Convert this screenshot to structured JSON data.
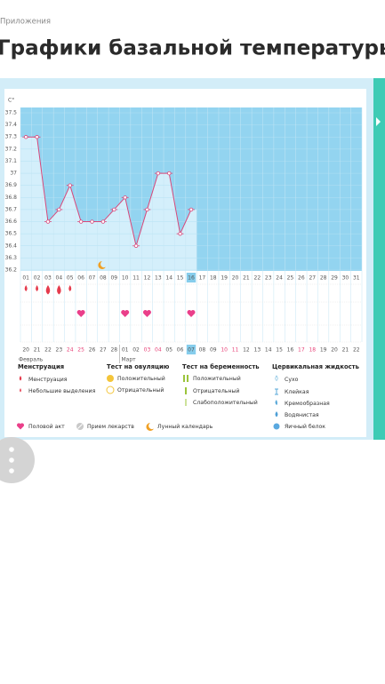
{
  "header": {
    "breadcrumb": "Приложения",
    "title": "Графики базальной температуры"
  },
  "chart_data": {
    "type": "line",
    "y_unit": "C°",
    "categories": [
      "01",
      "02",
      "03",
      "04",
      "05",
      "06",
      "07",
      "08",
      "09",
      "10",
      "11",
      "12",
      "13",
      "14",
      "15",
      "16",
      "17",
      "18",
      "19",
      "20",
      "21",
      "22",
      "23",
      "24",
      "25",
      "26",
      "27",
      "28",
      "29",
      "30",
      "31"
    ],
    "values": [
      37.3,
      37.3,
      36.6,
      36.7,
      36.9,
      36.6,
      36.6,
      36.6,
      36.7,
      36.8,
      36.4,
      36.7,
      37.0,
      37.0,
      36.5,
      36.7,
      null,
      null,
      null,
      null,
      null,
      null,
      null,
      null,
      null,
      null,
      null,
      null,
      null,
      null,
      null
    ],
    "color": "#d9487a",
    "ylim": [
      36.2,
      37.5
    ],
    "yticks": [
      36.2,
      36.3,
      36.4,
      36.5,
      36.6,
      36.7,
      36.8,
      36.9,
      37.0,
      37.1,
      37.2,
      37.3,
      37.4,
      37.5
    ],
    "grid": true,
    "menstruation": [
      "light",
      "light",
      "heavy",
      "heavy",
      "light",
      null,
      null,
      null,
      null,
      null,
      null,
      null,
      null,
      null,
      null,
      null,
      null,
      null,
      null,
      null,
      null,
      null,
      null,
      null,
      null,
      null,
      null,
      null,
      null,
      null,
      null
    ],
    "intercourse_days": [
      "06",
      "10",
      "12",
      "16"
    ],
    "moon_days": [
      "08"
    ],
    "cycle_dates": [
      {
        "label": "20",
        "weekend": false
      },
      {
        "label": "21",
        "weekend": false
      },
      {
        "label": "22",
        "weekend": false
      },
      {
        "label": "23",
        "weekend": false
      },
      {
        "label": "24",
        "weekend": true
      },
      {
        "label": "25",
        "weekend": true
      },
      {
        "label": "26",
        "weekend": false
      },
      {
        "label": "27",
        "weekend": false
      },
      {
        "label": "28",
        "weekend": false
      },
      {
        "label": "01",
        "weekend": false
      },
      {
        "label": "02",
        "weekend": false
      },
      {
        "label": "03",
        "weekend": true
      },
      {
        "label": "04",
        "weekend": true
      },
      {
        "label": "05",
        "weekend": false
      },
      {
        "label": "06",
        "weekend": false
      },
      {
        "label": "07",
        "weekend": false
      },
      {
        "label": "08",
        "weekend": false
      },
      {
        "label": "09",
        "weekend": false
      },
      {
        "label": "10",
        "weekend": true
      },
      {
        "label": "11",
        "weekend": true
      },
      {
        "label": "12",
        "weekend": false
      },
      {
        "label": "13",
        "weekend": false
      },
      {
        "label": "14",
        "weekend": false
      },
      {
        "label": "15",
        "weekend": false
      },
      {
        "label": "16",
        "weekend": false
      },
      {
        "label": "17",
        "weekend": true
      },
      {
        "label": "18",
        "weekend": true
      },
      {
        "label": "19",
        "weekend": false
      },
      {
        "label": "20",
        "weekend": false
      },
      {
        "label": "21",
        "weekend": false
      },
      {
        "label": "22",
        "weekend": false
      }
    ],
    "months": [
      "Февраль",
      "Март"
    ]
  },
  "legend": {
    "columns": [
      {
        "title": "Менструация",
        "items": [
          "Менструация",
          "Небольшие выделения"
        ]
      },
      {
        "title": "Тест на овуляцию",
        "items": [
          "Положительный",
          "Отрицательный"
        ]
      },
      {
        "title": "Тест на беременность",
        "items": [
          "Положительный",
          "Отрицательный",
          "Слабоположительный"
        ]
      },
      {
        "title": "Цервикальная жидкость",
        "items": [
          "Сухо",
          "Клейкая",
          "Кремообразная",
          "Водянистая",
          "Яичный белок"
        ]
      }
    ],
    "other": [
      "Половой акт",
      "Прием лекарств",
      "Лунный календарь"
    ]
  }
}
